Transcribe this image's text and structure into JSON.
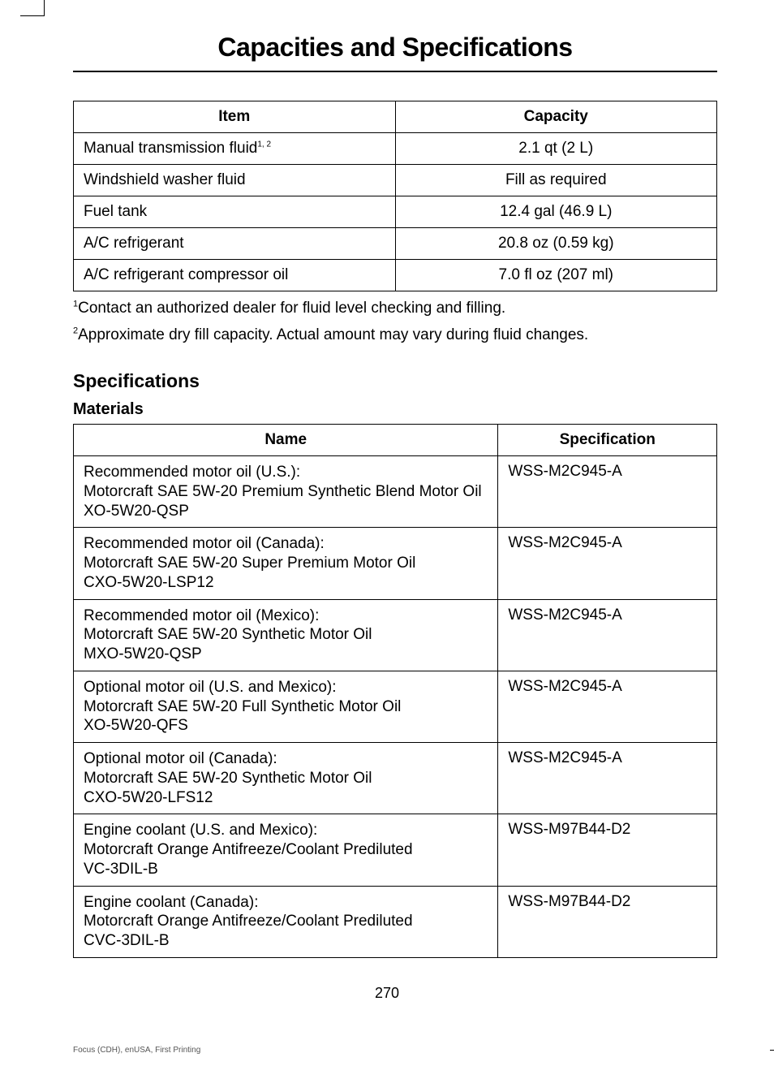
{
  "page_title": "Capacities and Specifications",
  "capacities_table": {
    "headers": [
      "Item",
      "Capacity"
    ],
    "rows": [
      {
        "item": "Manual transmission fluid",
        "sup": "1, 2",
        "capacity": "2.1 qt (2 L)"
      },
      {
        "item": "Windshield washer fluid",
        "sup": "",
        "capacity": "Fill as required"
      },
      {
        "item": "Fuel tank",
        "sup": "",
        "capacity": "12.4 gal (46.9 L)"
      },
      {
        "item": "A/C refrigerant",
        "sup": "",
        "capacity": "20.8 oz (0.59 kg)"
      },
      {
        "item": "A/C refrigerant compressor oil",
        "sup": "",
        "capacity": "7.0 fl oz (207 ml)"
      }
    ]
  },
  "footnotes": [
    {
      "num": "1",
      "text": "Contact an authorized dealer for fluid level checking and filling."
    },
    {
      "num": "2",
      "text": "Approximate dry fill capacity. Actual amount may vary during fluid changes."
    }
  ],
  "specifications_heading": "Specifications",
  "materials_heading": "Materials",
  "materials_table": {
    "headers": [
      "Name",
      "Specification"
    ],
    "rows": [
      {
        "name": "Recommended motor oil (U.S.):\nMotorcraft SAE 5W-20 Premium Synthetic Blend Motor Oil\nXO-5W20-QSP",
        "spec": "WSS-M2C945-A"
      },
      {
        "name": "Recommended motor oil (Canada):\nMotorcraft SAE 5W-20 Super Premium Motor Oil\nCXO-5W20-LSP12",
        "spec": "WSS-M2C945-A"
      },
      {
        "name": "Recommended motor oil (Mexico):\nMotorcraft SAE 5W-20 Synthetic Motor Oil\nMXO-5W20-QSP",
        "spec": "WSS-M2C945-A"
      },
      {
        "name": "Optional motor oil (U.S. and Mexico):\nMotorcraft SAE 5W-20 Full Synthetic Motor Oil\nXO-5W20-QFS",
        "spec": "WSS-M2C945-A"
      },
      {
        "name": "Optional motor oil (Canada):\nMotorcraft SAE 5W-20 Synthetic Motor Oil\nCXO-5W20-LFS12",
        "spec": "WSS-M2C945-A"
      },
      {
        "name": "Engine coolant (U.S. and Mexico):\nMotorcraft Orange Antifreeze/Coolant Prediluted\nVC-3DIL-B",
        "spec": "WSS-M97B44-D2"
      },
      {
        "name": "Engine coolant (Canada):\nMotorcraft Orange Antifreeze/Coolant Prediluted\nCVC-3DIL-B",
        "spec": "WSS-M97B44-D2"
      }
    ]
  },
  "page_number": "270",
  "footer_text": "Focus (CDH), enUSA, First Printing"
}
